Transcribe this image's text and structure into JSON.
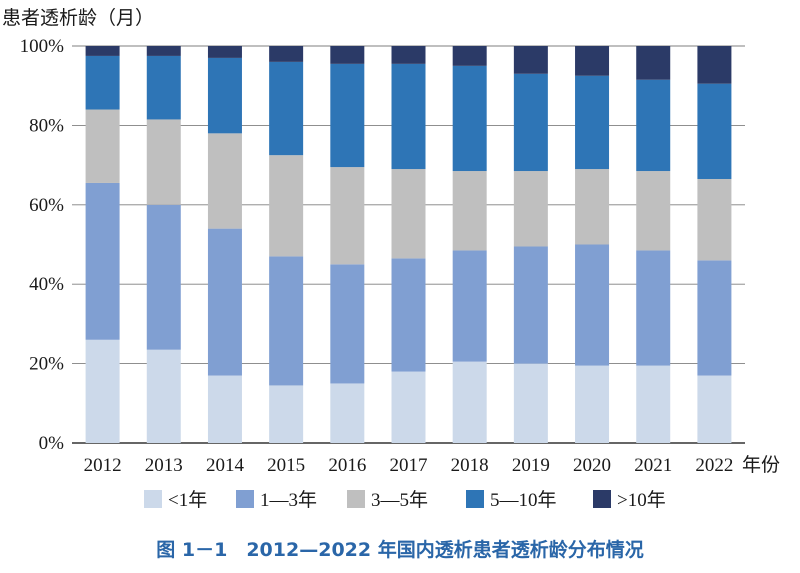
{
  "chart_data": {
    "type": "bar",
    "stacked": true,
    "ylabel": "患者透析龄（月）",
    "xlabel": "年份",
    "caption": "图 1－1　2012—2022 年国内透析患者透析龄分布情况",
    "ylim": [
      0,
      100
    ],
    "yticks": [
      "0%",
      "20%",
      "40%",
      "60%",
      "80%",
      "100%"
    ],
    "grid": true,
    "legend_position": "bottom",
    "categories": [
      "2012",
      "2013",
      "2014",
      "2015",
      "2016",
      "2017",
      "2018",
      "2019",
      "2020",
      "2021",
      "2022"
    ],
    "series": [
      {
        "name": "<1年",
        "color": "#ccd9ea",
        "values": [
          26,
          23.5,
          17,
          14.5,
          15,
          18,
          20.5,
          20,
          19.5,
          19.5,
          17
        ]
      },
      {
        "name": "1—3年",
        "color": "#809fd2",
        "values": [
          39.5,
          36.5,
          37,
          32.5,
          30,
          28.5,
          28,
          29.5,
          30.5,
          29,
          29
        ]
      },
      {
        "name": "3—5年",
        "color": "#bfbfbf",
        "values": [
          18.5,
          21.5,
          24,
          25.5,
          24.5,
          22.5,
          20,
          19,
          19,
          20,
          20.5
        ]
      },
      {
        "name": "5—10年",
        "color": "#2e75b6",
        "values": [
          13.5,
          16,
          19,
          23.5,
          26,
          26.5,
          26.5,
          24.5,
          23.5,
          23,
          24
        ]
      },
      {
        "name": ">10年",
        "color": "#2b3a67",
        "values": [
          2.5,
          2.5,
          3,
          4,
          4.5,
          4.5,
          5,
          7,
          7.5,
          8.5,
          9.5
        ]
      }
    ]
  }
}
